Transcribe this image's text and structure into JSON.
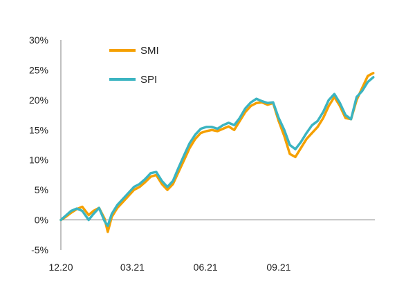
{
  "chart_data": {
    "type": "line",
    "title": "",
    "xlabel": "",
    "ylabel": "",
    "ylim": [
      -5,
      30
    ],
    "y_ticks": [
      "30%",
      "25%",
      "20%",
      "15%",
      "10%",
      "5%",
      "0%",
      "-5%"
    ],
    "y_tick_values": [
      30,
      25,
      20,
      15,
      10,
      5,
      0,
      -5
    ],
    "x_ticks": [
      "12.20",
      "03.21",
      "06.21",
      "09.21"
    ],
    "x_tick_values": [
      "2020-12",
      "2021-03",
      "2021-06",
      "2021-09"
    ],
    "grid": false,
    "legend_position": "top-left",
    "series": [
      {
        "name": "SMI",
        "color": "#F5A000",
        "values": [
          [
            "2020-12-01",
            0.0
          ],
          [
            "2020-12-07",
            0.5
          ],
          [
            "2020-12-14",
            1.2
          ],
          [
            "2020-12-21",
            1.8
          ],
          [
            "2020-12-28",
            2.2
          ],
          [
            "2021-01-05",
            0.8
          ],
          [
            "2021-01-11",
            1.5
          ],
          [
            "2021-01-18",
            2.0
          ],
          [
            "2021-01-25",
            0.2
          ],
          [
            "2021-01-29",
            -2.0
          ],
          [
            "2021-02-03",
            0.5
          ],
          [
            "2021-02-10",
            2.0
          ],
          [
            "2021-02-17",
            3.0
          ],
          [
            "2021-02-24",
            4.0
          ],
          [
            "2021-03-03",
            5.0
          ],
          [
            "2021-03-10",
            5.5
          ],
          [
            "2021-03-17",
            6.3
          ],
          [
            "2021-03-24",
            7.2
          ],
          [
            "2021-03-31",
            7.5
          ],
          [
            "2021-04-07",
            6.0
          ],
          [
            "2021-04-14",
            5.0
          ],
          [
            "2021-04-21",
            6.0
          ],
          [
            "2021-04-28",
            8.0
          ],
          [
            "2021-05-05",
            10.0
          ],
          [
            "2021-05-12",
            12.0
          ],
          [
            "2021-05-19",
            13.5
          ],
          [
            "2021-05-26",
            14.5
          ],
          [
            "2021-06-02",
            14.8
          ],
          [
            "2021-06-09",
            15.0
          ],
          [
            "2021-06-16",
            14.8
          ],
          [
            "2021-06-23",
            15.2
          ],
          [
            "2021-06-30",
            15.6
          ],
          [
            "2021-07-07",
            15.0
          ],
          [
            "2021-07-14",
            16.5
          ],
          [
            "2021-07-21",
            18.0
          ],
          [
            "2021-07-28",
            19.0
          ],
          [
            "2021-08-04",
            19.5
          ],
          [
            "2021-08-11",
            19.6
          ],
          [
            "2021-08-18",
            19.2
          ],
          [
            "2021-08-25",
            19.5
          ],
          [
            "2021-09-01",
            16.5
          ],
          [
            "2021-09-08",
            14.0
          ],
          [
            "2021-09-15",
            11.0
          ],
          [
            "2021-09-22",
            10.5
          ],
          [
            "2021-09-29",
            12.0
          ],
          [
            "2021-10-06",
            13.5
          ],
          [
            "2021-10-13",
            14.5
          ],
          [
            "2021-10-20",
            15.5
          ],
          [
            "2021-10-27",
            17.0
          ],
          [
            "2021-11-03",
            19.0
          ],
          [
            "2021-11-10",
            20.5
          ],
          [
            "2021-11-17",
            19.0
          ],
          [
            "2021-11-24",
            17.0
          ],
          [
            "2021-12-01",
            16.8
          ],
          [
            "2021-12-08",
            20.0
          ],
          [
            "2021-12-15",
            22.0
          ],
          [
            "2021-12-22",
            24.0
          ],
          [
            "2021-12-29",
            24.5
          ]
        ]
      },
      {
        "name": "SPI",
        "color": "#3BB4C1",
        "values": [
          [
            "2020-12-01",
            0.0
          ],
          [
            "2020-12-07",
            0.7
          ],
          [
            "2020-12-14",
            1.5
          ],
          [
            "2020-12-21",
            1.9
          ],
          [
            "2020-12-28",
            1.5
          ],
          [
            "2021-01-05",
            0.0
          ],
          [
            "2021-01-11",
            1.0
          ],
          [
            "2021-01-18",
            2.0
          ],
          [
            "2021-01-25",
            -0.2
          ],
          [
            "2021-01-29",
            -1.0
          ],
          [
            "2021-02-03",
            1.0
          ],
          [
            "2021-02-10",
            2.5
          ],
          [
            "2021-02-17",
            3.5
          ],
          [
            "2021-02-24",
            4.5
          ],
          [
            "2021-03-03",
            5.5
          ],
          [
            "2021-03-10",
            6.0
          ],
          [
            "2021-03-17",
            6.8
          ],
          [
            "2021-03-24",
            7.8
          ],
          [
            "2021-03-31",
            8.0
          ],
          [
            "2021-04-07",
            6.5
          ],
          [
            "2021-04-14",
            5.5
          ],
          [
            "2021-04-21",
            6.5
          ],
          [
            "2021-04-28",
            8.7
          ],
          [
            "2021-05-05",
            10.8
          ],
          [
            "2021-05-12",
            12.8
          ],
          [
            "2021-05-19",
            14.2
          ],
          [
            "2021-05-26",
            15.2
          ],
          [
            "2021-06-02",
            15.5
          ],
          [
            "2021-06-09",
            15.5
          ],
          [
            "2021-06-16",
            15.2
          ],
          [
            "2021-06-23",
            15.8
          ],
          [
            "2021-06-30",
            16.2
          ],
          [
            "2021-07-07",
            15.8
          ],
          [
            "2021-07-14",
            17.0
          ],
          [
            "2021-07-21",
            18.6
          ],
          [
            "2021-07-28",
            19.6
          ],
          [
            "2021-08-04",
            20.2
          ],
          [
            "2021-08-11",
            19.8
          ],
          [
            "2021-08-18",
            19.5
          ],
          [
            "2021-08-25",
            19.6
          ],
          [
            "2021-09-01",
            17.0
          ],
          [
            "2021-09-08",
            15.0
          ],
          [
            "2021-09-15",
            12.5
          ],
          [
            "2021-09-22",
            11.8
          ],
          [
            "2021-09-29",
            13.0
          ],
          [
            "2021-10-06",
            14.5
          ],
          [
            "2021-10-13",
            15.8
          ],
          [
            "2021-10-20",
            16.5
          ],
          [
            "2021-10-27",
            18.0
          ],
          [
            "2021-11-03",
            20.0
          ],
          [
            "2021-11-10",
            21.0
          ],
          [
            "2021-11-17",
            19.5
          ],
          [
            "2021-11-24",
            17.5
          ],
          [
            "2021-12-01",
            16.8
          ],
          [
            "2021-12-08",
            20.5
          ],
          [
            "2021-12-15",
            21.5
          ],
          [
            "2021-12-22",
            23.0
          ],
          [
            "2021-12-29",
            23.8
          ]
        ]
      }
    ]
  }
}
